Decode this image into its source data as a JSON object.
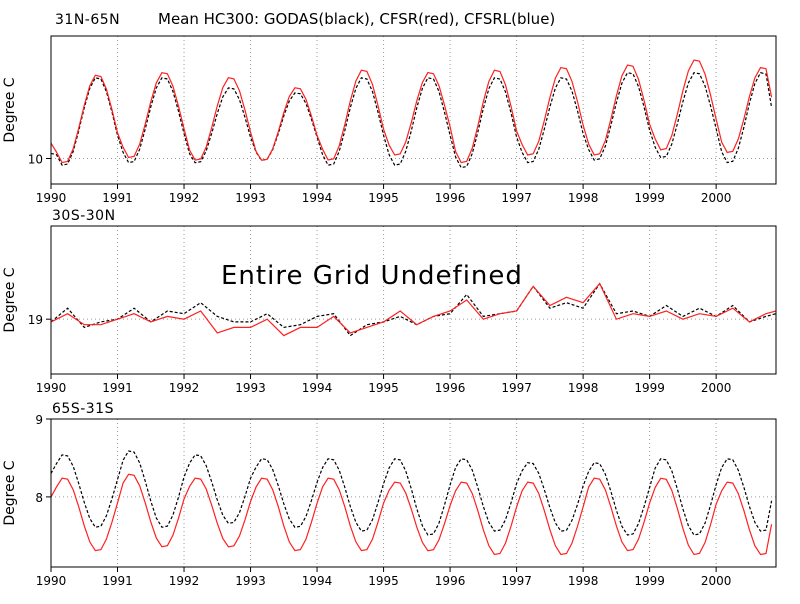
{
  "figure": {
    "title": "Mean HC300: GODAS(black), CFSR(red), CFSRL(blue)",
    "colors": {
      "GODAS": "#000000",
      "CFSR": "#ff2020",
      "CFSRL": "#0000ff"
    }
  },
  "chart_data": [
    {
      "type": "line",
      "panel_title": "31N-65N",
      "ylabel": "Degree C",
      "xlim": [
        1990,
        2000.9
      ],
      "ylim": [
        9.5,
        12.4
      ],
      "x_ticks": [
        "1990",
        "1991",
        "1992",
        "1993",
        "1994",
        "1995",
        "1996",
        "1997",
        "1998",
        "1999",
        "2000"
      ],
      "y_ticks": [
        10
      ],
      "y_tick_labels": [
        "10"
      ],
      "grid": true,
      "annotation": "",
      "series": [
        {
          "name": "GODAS",
          "color": "#000000",
          "style": "dashed",
          "seasonal": {
            "peak_phase": 0.7,
            "years": [
              1990,
              1991,
              1992,
              1993,
              1994,
              1995,
              1996,
              1997,
              1998,
              1999,
              2000
            ],
            "maxima": [
              11.6,
              11.6,
              11.4,
              11.3,
              11.6,
              11.6,
              11.6,
              11.6,
              11.7,
              11.7,
              11.7
            ],
            "minima": [
              9.85,
              9.9,
              9.9,
              9.95,
              9.85,
              9.85,
              9.8,
              9.9,
              9.95,
              10.0,
              9.9
            ]
          },
          "start_value": 10.1,
          "end_value": 11.0
        },
        {
          "name": "CFSR",
          "color": "#ff2020",
          "style": "solid",
          "seasonal": {
            "peak_phase": 0.7,
            "years": [
              1990,
              1991,
              1992,
              1993,
              1994,
              1995,
              1996,
              1997,
              1998,
              1999,
              2000
            ],
            "maxima": [
              11.65,
              11.7,
              11.6,
              11.4,
              11.75,
              11.7,
              11.75,
              11.8,
              11.85,
              11.95,
              11.8
            ],
            "minima": [
              9.9,
              10.0,
              9.95,
              9.95,
              9.95,
              10.05,
              9.9,
              10.05,
              10.05,
              10.15,
              10.1
            ]
          },
          "start_value": 10.3,
          "end_value": 11.2
        }
      ]
    },
    {
      "type": "line",
      "panel_title": "30S-30N",
      "ylabel": "Degree C",
      "xlim": [
        1990,
        2000.9
      ],
      "ylim": [
        18.0,
        20.7
      ],
      "x_ticks": [
        "1990",
        "1991",
        "1992",
        "1993",
        "1994",
        "1995",
        "1996",
        "1997",
        "1998",
        "1999",
        "2000"
      ],
      "y_ticks": [
        19
      ],
      "y_tick_labels": [
        "19"
      ],
      "grid": true,
      "annotation": "Entire Grid Undefined",
      "series": [
        {
          "name": "GODAS",
          "color": "#000000",
          "style": "dashed",
          "x": [
            1990.0,
            1990.25,
            1990.5,
            1990.75,
            1991.0,
            1991.25,
            1991.5,
            1991.75,
            1992.0,
            1992.25,
            1992.5,
            1992.75,
            1993.0,
            1993.25,
            1993.5,
            1993.75,
            1994.0,
            1994.25,
            1994.5,
            1994.75,
            1995.0,
            1995.25,
            1995.5,
            1995.75,
            1996.0,
            1996.25,
            1996.5,
            1996.75,
            1997.0,
            1997.25,
            1997.5,
            1997.75,
            1998.0,
            1998.25,
            1998.5,
            1998.75,
            1999.0,
            1999.25,
            1999.5,
            1999.75,
            2000.0,
            2000.25,
            2000.5,
            2000.75,
            2000.9
          ],
          "y": [
            18.95,
            19.2,
            18.85,
            18.95,
            19.0,
            19.2,
            18.95,
            19.15,
            19.1,
            19.3,
            19.05,
            18.95,
            18.95,
            19.1,
            18.85,
            18.9,
            19.05,
            19.1,
            18.7,
            18.9,
            18.95,
            19.05,
            18.9,
            19.05,
            19.1,
            19.45,
            19.05,
            19.1,
            19.15,
            19.6,
            19.2,
            19.3,
            19.2,
            19.65,
            19.1,
            19.15,
            19.05,
            19.25,
            19.05,
            19.2,
            19.05,
            19.25,
            18.95,
            19.05,
            19.1
          ]
        },
        {
          "name": "CFSR",
          "color": "#ff2020",
          "style": "solid",
          "x": [
            1990.0,
            1990.25,
            1990.5,
            1990.75,
            1991.0,
            1991.25,
            1991.5,
            1991.75,
            1992.0,
            1992.25,
            1992.5,
            1992.75,
            1993.0,
            1993.25,
            1993.5,
            1993.75,
            1994.0,
            1994.25,
            1994.5,
            1994.75,
            1995.0,
            1995.25,
            1995.5,
            1995.75,
            1996.0,
            1996.25,
            1996.5,
            1996.75,
            1997.0,
            1997.25,
            1997.5,
            1997.75,
            1998.0,
            1998.25,
            1998.5,
            1998.75,
            1999.0,
            1999.25,
            1999.5,
            1999.75,
            2000.0,
            2000.25,
            2000.5,
            2000.75,
            2000.9
          ],
          "y": [
            18.95,
            19.1,
            18.9,
            18.9,
            19.0,
            19.1,
            18.95,
            19.05,
            19.0,
            19.15,
            18.75,
            18.85,
            18.85,
            19.0,
            18.7,
            18.85,
            18.85,
            19.05,
            18.75,
            18.85,
            18.95,
            19.15,
            18.9,
            19.05,
            19.15,
            19.35,
            19.0,
            19.1,
            19.15,
            19.6,
            19.25,
            19.4,
            19.3,
            19.65,
            19.0,
            19.1,
            19.05,
            19.15,
            19.0,
            19.1,
            19.05,
            19.2,
            18.95,
            19.1,
            19.15
          ]
        }
      ]
    },
    {
      "type": "line",
      "panel_title": "65S-31S",
      "ylabel": "Degree C",
      "xlim": [
        1990,
        2000.9
      ],
      "ylim": [
        7.1,
        9.0
      ],
      "x_ticks": [
        "1990",
        "1991",
        "1992",
        "1993",
        "1994",
        "1995",
        "1996",
        "1997",
        "1998",
        "1999",
        "2000"
      ],
      "y_ticks": [
        8,
        9
      ],
      "y_tick_labels": [
        "8",
        "9"
      ],
      "grid": true,
      "annotation": "",
      "series": [
        {
          "name": "GODAS",
          "color": "#000000",
          "style": "dashed",
          "seasonal": {
            "peak_phase": 0.2,
            "years": [
              1990,
              1991,
              1992,
              1993,
              1994,
              1995,
              1996,
              1997,
              1998,
              1999,
              2000
            ],
            "maxima": [
              8.55,
              8.6,
              8.55,
              8.5,
              8.5,
              8.5,
              8.5,
              8.45,
              8.45,
              8.5,
              8.5
            ],
            "minima": [
              7.6,
              7.6,
              7.65,
              7.6,
              7.55,
              7.5,
              7.55,
              7.55,
              7.5,
              7.5,
              7.55
            ]
          },
          "start_value": 8.3,
          "end_value": 7.95
        },
        {
          "name": "CFSR",
          "color": "#ff2020",
          "style": "solid",
          "seasonal": {
            "peak_phase": 0.2,
            "years": [
              1990,
              1991,
              1992,
              1993,
              1994,
              1995,
              1996,
              1997,
              1998,
              1999,
              2000
            ],
            "maxima": [
              8.25,
              8.3,
              8.25,
              8.25,
              8.25,
              8.2,
              8.2,
              8.2,
              8.25,
              8.25,
              8.2
            ],
            "minima": [
              7.3,
              7.35,
              7.35,
              7.3,
              7.3,
              7.3,
              7.25,
              7.25,
              7.3,
              7.25,
              7.25
            ]
          },
          "start_value": 8.0,
          "end_value": 7.65
        }
      ]
    }
  ]
}
